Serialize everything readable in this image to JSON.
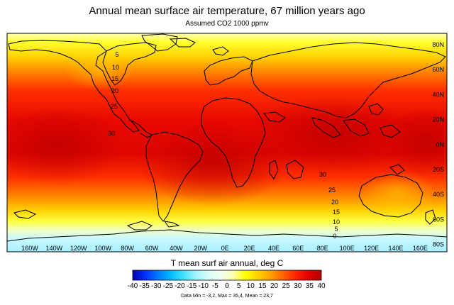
{
  "title": "Annual mean surface air temperature, 67 million years ago",
  "subtitle": "Assumed CO2 1000 ppmv",
  "chart_data": {
    "type": "heatmap",
    "projection": "equirectangular world map",
    "lon_labels": [
      "160W",
      "140W",
      "120W",
      "100W",
      "80W",
      "60W",
      "40W",
      "20W",
      "0E",
      "20E",
      "40E",
      "60E",
      "80E",
      "100E",
      "120E",
      "140E",
      "160E"
    ],
    "lat_labels": [
      "80N",
      "60N",
      "40N",
      "20N",
      "0N",
      "20S",
      "40S",
      "60S",
      "80S"
    ],
    "contour_labels_americas": [
      "5",
      "10",
      "15",
      "20",
      "25",
      "30"
    ],
    "contour_label_indian": "30",
    "contour_labels_south": [
      "25",
      "20",
      "15",
      "10",
      "5",
      "0"
    ],
    "colorbar": {
      "label": "T mean surf air annual, deg C",
      "ticks": [
        "-40",
        "-35",
        "-30",
        "-25",
        "-20",
        "-15",
        "-10",
        "-5",
        "0",
        "5",
        "10",
        "15",
        "20",
        "25",
        "30",
        "35",
        "40"
      ],
      "range": [
        -40,
        40
      ],
      "colors": [
        "#0000b0",
        "#0030ff",
        "#0078ff",
        "#00b8ff",
        "#40e0ff",
        "#a0f4ff",
        "#d8fcf8",
        "#f0fff0",
        "#ffffb0",
        "#ffff00",
        "#ffd000",
        "#ffa000",
        "#ff6000",
        "#ff2000",
        "#e00000",
        "#b00000"
      ]
    },
    "stats": "Data Min = -3,2, Max = 35,4, Mean = 23,7"
  }
}
